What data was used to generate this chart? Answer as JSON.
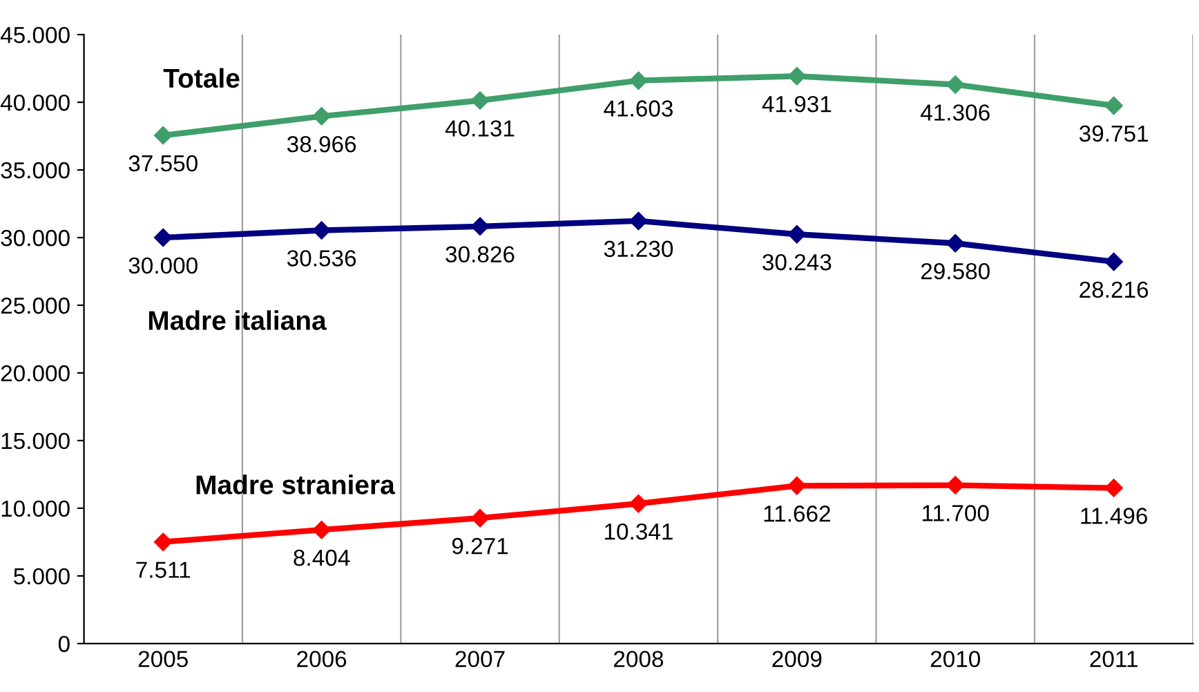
{
  "chart_data": {
    "type": "line",
    "categories": [
      "2005",
      "2006",
      "2007",
      "2008",
      "2009",
      "2010",
      "2011"
    ],
    "series": [
      {
        "name": "Totale",
        "color": "#3f9f6a",
        "values": [
          37550,
          38966,
          40131,
          41603,
          41931,
          41306,
          39751
        ],
        "value_labels": [
          "37.550",
          "38.966",
          "40.131",
          "41.603",
          "41.931",
          "41.306",
          "39.751"
        ]
      },
      {
        "name": "Madre italiana",
        "color": "#000080",
        "values": [
          30000,
          30536,
          30826,
          31230,
          30243,
          29580,
          28216
        ],
        "value_labels": [
          "30.000",
          "30.536",
          "30.826",
          "31.230",
          "30.243",
          "29.580",
          "28.216"
        ]
      },
      {
        "name": "Madre straniera",
        "color": "#ff0000",
        "values": [
          7511,
          8404,
          9271,
          10341,
          11662,
          11700,
          11496
        ],
        "value_labels": [
          "7.511",
          "8.404",
          "9.271",
          "10.341",
          "11.662",
          "11.700",
          "11.496"
        ]
      }
    ],
    "ylim": [
      0,
      45000
    ],
    "yticks": [
      {
        "value": 0,
        "label": "0"
      },
      {
        "value": 5000,
        "label": "5.000"
      },
      {
        "value": 10000,
        "label": "10.000"
      },
      {
        "value": 15000,
        "label": "15.000"
      },
      {
        "value": 20000,
        "label": "20.000"
      },
      {
        "value": 25000,
        "label": "25.000"
      },
      {
        "value": 30000,
        "label": "30.000"
      },
      {
        "value": 35000,
        "label": "35.000"
      },
      {
        "value": 40000,
        "label": "40.000"
      },
      {
        "value": 45000,
        "label": "45.000"
      }
    ],
    "grid": "x",
    "marker": "diamond",
    "line_style": "solid",
    "legend": false
  }
}
